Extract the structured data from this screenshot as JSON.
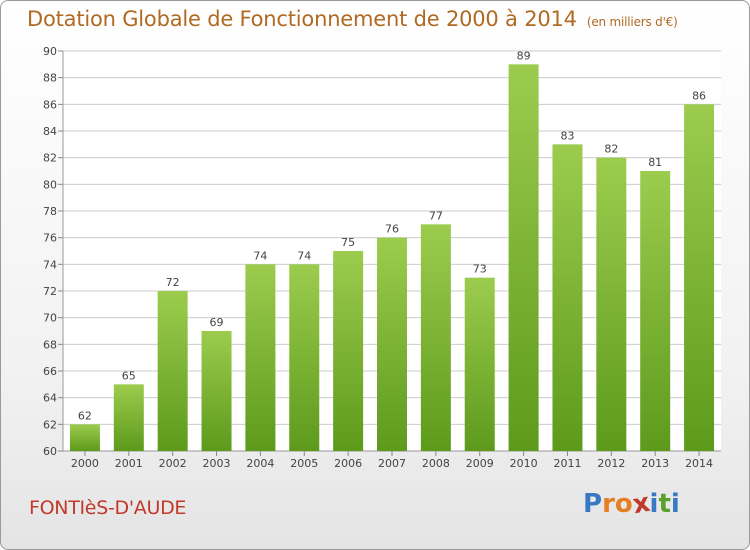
{
  "header": {
    "title": "Dotation Globale de Fonctionnement de 2000 à 2014",
    "subtitle": "(en milliers d'€)"
  },
  "footer": {
    "commune": "FONTIèS-D'AUDE",
    "logo_letters": [
      "P",
      "r",
      "o",
      "x",
      "i",
      "t",
      "i"
    ],
    "logo_colors": [
      "#3a78c3",
      "#e67e22",
      "#e67e22",
      "#c0392b",
      "#3a78c3",
      "#5aa02c",
      "#3a78c3"
    ]
  },
  "colors": {
    "bar_top": "#9ccc4e",
    "bar_bottom": "#5d9a1c",
    "grid": "#cccccc",
    "axis_text": "#444444"
  },
  "chart_data": {
    "type": "bar",
    "categories": [
      "2000",
      "2001",
      "2002",
      "2003",
      "2004",
      "2005",
      "2006",
      "2007",
      "2008",
      "2009",
      "2010",
      "2011",
      "2012",
      "2013",
      "2014"
    ],
    "values": [
      62,
      65,
      72,
      69,
      74,
      74,
      75,
      76,
      77,
      73,
      89,
      83,
      82,
      81,
      86
    ],
    "ylim": [
      60,
      90
    ],
    "yticks": [
      60,
      62,
      64,
      66,
      68,
      70,
      72,
      74,
      76,
      78,
      80,
      82,
      84,
      86,
      88,
      90
    ],
    "grid": true,
    "xlabel": "",
    "ylabel": ""
  }
}
